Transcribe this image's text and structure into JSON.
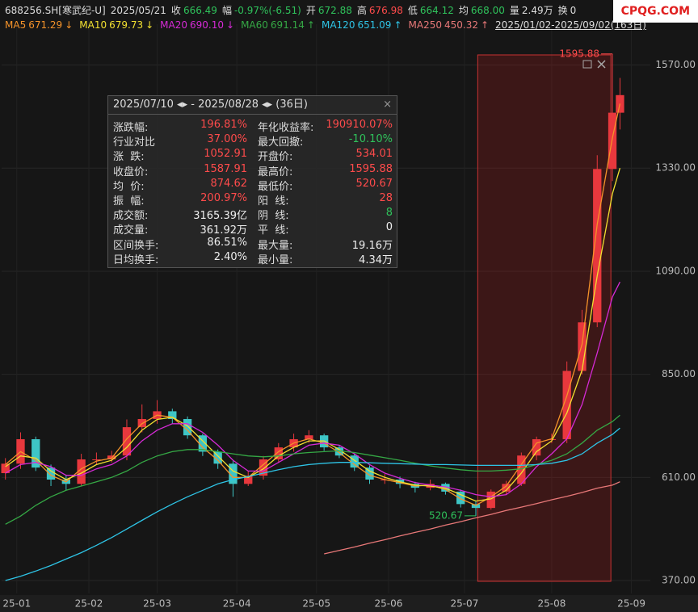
{
  "header": {
    "symbol": "688256.SH[寒武纪-U]",
    "date": "2025/05/21",
    "fields": [
      {
        "label": "收",
        "value": "666.49",
        "color": "#2fc25b"
      },
      {
        "label": "幅",
        "value": "-0.97%(-6.51)",
        "color": "#2fc25b"
      },
      {
        "label": "开",
        "value": "672.88",
        "color": "#2fc25b"
      },
      {
        "label": "高",
        "value": "676.98",
        "color": "#ff4b4b"
      },
      {
        "label": "低",
        "value": "664.12",
        "color": "#2fc25b"
      },
      {
        "label": "均",
        "value": "668.00",
        "color": "#2fc25b"
      },
      {
        "label": "量",
        "value": "2.49万",
        "color": "#dddddd"
      },
      {
        "label": "换",
        "value": "0",
        "color": "#dddddd"
      }
    ],
    "range": "2025/01/02-2025/09/02(163日)"
  },
  "watermark": "CPQG.COM",
  "panel": {
    "title": "2025/07/10 ◂▸ - 2025/08/28 ◂▸ (36日)",
    "close": "×",
    "rows": [
      [
        {
          "label": "涨跌幅:",
          "value": "196.81%",
          "color": "#ff4b4b"
        },
        {
          "label": "年化收益率:",
          "value": "190910.07%",
          "color": "#ff4b4b"
        }
      ],
      [
        {
          "label": "行业对比",
          "value": "37.00%",
          "color": "#ff4b4b"
        },
        {
          "label": "最大回撤:",
          "value": "-10.10%",
          "color": "#2fc25b"
        }
      ],
      [
        {
          "label": "涨  跌:",
          "value": "1052.91",
          "color": "#ff4b4b"
        },
        {
          "label": "开盘价:",
          "value": "534.01",
          "color": "#ff4b4b"
        }
      ],
      [
        {
          "label": "收盘价:",
          "value": "1587.91",
          "color": "#ff4b4b"
        },
        {
          "label": "最高价:",
          "value": "1595.88",
          "color": "#ff4b4b"
        }
      ],
      [
        {
          "label": "均  价:",
          "value": "874.62",
          "color": "#ff4b4b"
        },
        {
          "label": "最低价:",
          "value": "520.67",
          "color": "#ff4b4b"
        }
      ],
      [
        {
          "label": "振  幅:",
          "value": "200.97%",
          "color": "#ff4b4b"
        },
        {
          "label": "阳  线:",
          "value": "28",
          "color": "#ff4b4b"
        }
      ],
      [
        {
          "label": "成交额:",
          "value": "3165.39亿",
          "color": "#eeeeee"
        },
        {
          "label": "阴  线:",
          "value": "8",
          "color": "#2fc25b"
        }
      ],
      [
        {
          "label": "成交量:",
          "value": "361.92万",
          "color": "#eeeeee"
        },
        {
          "label": "平  线:",
          "value": "0",
          "color": "#eeeeee"
        }
      ],
      [
        {
          "label": "区间换手:",
          "value": "86.51%",
          "color": "#eeeeee"
        },
        {
          "label": "最大量:",
          "value": "19.16万",
          "color": "#eeeeee"
        }
      ],
      [
        {
          "label": "日均换手:",
          "value": "2.40%",
          "color": "#eeeeee"
        },
        {
          "label": "最小量:",
          "value": "4.34万",
          "color": "#eeeeee"
        }
      ]
    ]
  },
  "chart_data": {
    "type": "candlestick",
    "grid": true,
    "up_color": "#e8383d",
    "down_color": "#3ec6c6",
    "xlim": [
      -1,
      170
    ],
    "ylim": [
      340,
      1665
    ],
    "yticks": [
      {
        "value": 370,
        "label": "370.00"
      },
      {
        "value": 610,
        "label": "610.00"
      },
      {
        "value": 850,
        "label": "850.00"
      },
      {
        "value": 1090,
        "label": "1090.00"
      },
      {
        "value": 1330,
        "label": "1330.00"
      },
      {
        "value": 1570,
        "label": "1570.00"
      }
    ],
    "xticks": [
      {
        "value": 3,
        "label": "25-01"
      },
      {
        "value": 22,
        "label": "25-02"
      },
      {
        "value": 40,
        "label": "25-03"
      },
      {
        "value": 61,
        "label": "25-04"
      },
      {
        "value": 82,
        "label": "25-05"
      },
      {
        "value": 101,
        "label": "25-06"
      },
      {
        "value": 121,
        "label": "25-07"
      },
      {
        "value": 144,
        "label": "25-08"
      },
      {
        "value": 165,
        "label": "25-09"
      }
    ],
    "highlight_range": [
      124.5,
      159.6
    ],
    "x": [
      0,
      4,
      8,
      12,
      16,
      20,
      24,
      28,
      32,
      36,
      40,
      44,
      48,
      52,
      56,
      60,
      64,
      68,
      72,
      76,
      80,
      84,
      88,
      92,
      96,
      100,
      104,
      108,
      112,
      116,
      120,
      124,
      128,
      132,
      136,
      140,
      144,
      148,
      152,
      156,
      160,
      162
    ],
    "open": [
      620,
      642,
      699,
      633,
      605,
      595,
      652,
      652,
      661,
      727,
      746,
      764,
      746,
      708,
      670,
      642,
      595,
      614,
      652,
      680,
      699,
      708,
      680,
      661,
      633,
      605,
      605,
      595,
      586,
      595,
      577,
      548,
      539,
      577,
      595,
      661,
      699,
      699,
      858,
      971,
      1328,
      1459
    ],
    "high": [
      655,
      715,
      705,
      640,
      615,
      665,
      668,
      672,
      745,
      780,
      790,
      770,
      752,
      712,
      675,
      648,
      625,
      660,
      690,
      712,
      720,
      712,
      685,
      665,
      638,
      618,
      612,
      600,
      605,
      598,
      582,
      555,
      582,
      602,
      668,
      705,
      712,
      880,
      1000,
      1360,
      1595.88,
      1540
    ],
    "low": [
      605,
      630,
      625,
      590,
      580,
      590,
      640,
      645,
      650,
      715,
      735,
      735,
      700,
      660,
      630,
      565,
      590,
      605,
      645,
      670,
      690,
      672,
      655,
      625,
      595,
      595,
      585,
      575,
      580,
      570,
      540,
      520.67,
      535,
      570,
      590,
      650,
      690,
      690,
      850,
      960,
      1300,
      1420
    ],
    "close": [
      642,
      699,
      633,
      605,
      595,
      652,
      652,
      661,
      727,
      746,
      764,
      746,
      708,
      670,
      642,
      595,
      614,
      652,
      680,
      699,
      708,
      680,
      661,
      633,
      605,
      605,
      595,
      586,
      595,
      577,
      548,
      539,
      577,
      595,
      661,
      699,
      699,
      858,
      971,
      1328,
      1459,
      1500
    ],
    "series": [
      {
        "name": "MA5",
        "legend_value": "671.29",
        "legend_arrow": "↓",
        "color": "#f5932a",
        "values": [
          640,
          670,
          650,
          615,
          600,
          630,
          648,
          655,
          700,
          735,
          755,
          750,
          720,
          680,
          650,
          610,
          610,
          640,
          670,
          690,
          700,
          690,
          668,
          640,
          615,
          605,
          598,
          590,
          592,
          582,
          560,
          545,
          565,
          590,
          640,
          690,
          700,
          800,
          920,
          1200,
          1400,
          1480
        ]
      },
      {
        "name": "MA10",
        "legend_value": "679.73",
        "legend_arrow": "↓",
        "color": "#f2e030",
        "values": [
          635,
          660,
          655,
          625,
          605,
          620,
          640,
          650,
          680,
          720,
          745,
          750,
          730,
          695,
          660,
          625,
          610,
          630,
          660,
          680,
          695,
          695,
          675,
          650,
          625,
          610,
          600,
          592,
          590,
          585,
          570,
          555,
          560,
          580,
          620,
          670,
          695,
          760,
          860,
          1080,
          1270,
          1330
        ]
      },
      {
        "name": "MA20",
        "legend_value": "690.10",
        "legend_arrow": "↓",
        "color": "#d62ad6",
        "values": [
          620,
          640,
          645,
          635,
          615,
          615,
          630,
          640,
          660,
          695,
          720,
          735,
          735,
          715,
          685,
          650,
          625,
          625,
          645,
          665,
          685,
          690,
          685,
          665,
          640,
          620,
          608,
          598,
          592,
          588,
          580,
          570,
          565,
          570,
          595,
          635,
          665,
          700,
          780,
          900,
          1030,
          1065
        ]
      },
      {
        "name": "MA60",
        "legend_value": "691.14",
        "legend_arrow": "↑",
        "color": "#35a845",
        "values": [
          501,
          520,
          545,
          565,
          580,
          590,
          600,
          610,
          625,
          645,
          660,
          670,
          675,
          675,
          670,
          665,
          660,
          658,
          660,
          665,
          668,
          670,
          672,
          668,
          662,
          656,
          650,
          643,
          637,
          632,
          628,
          625,
          625,
          627,
          630,
          640,
          650,
          665,
          690,
          720,
          740,
          755
        ]
      },
      {
        "name": "MA120",
        "legend_value": "651.09",
        "legend_arrow": "↑",
        "color": "#2ec4e6",
        "values": [
          370,
          380,
          392,
          405,
          420,
          435,
          452,
          470,
          490,
          510,
          530,
          548,
          565,
          580,
          595,
          605,
          612,
          620,
          628,
          635,
          640,
          643,
          645,
          645,
          644,
          643,
          642,
          641,
          640,
          640,
          639,
          638,
          638,
          638,
          638,
          640,
          643,
          650,
          665,
          690,
          710,
          725
        ]
      },
      {
        "name": "MA250",
        "legend_value": "450.32",
        "legend_arrow": "↑",
        "color": "#e87878",
        "values": [
          null,
          null,
          null,
          null,
          null,
          null,
          null,
          null,
          null,
          null,
          null,
          null,
          null,
          null,
          null,
          null,
          null,
          null,
          null,
          null,
          null,
          432,
          440,
          448,
          457,
          465,
          474,
          482,
          490,
          499,
          507,
          516,
          524,
          533,
          541,
          549,
          558,
          566,
          575,
          585,
          592,
          600
        ]
      }
    ],
    "annotations": [
      {
        "text": "1595.88",
        "x": 160,
        "y": 1595.88,
        "color": "#ff4b4b"
      },
      {
        "text": "520.67",
        "x": 124,
        "y": 520.67,
        "color": "#2fc25b"
      }
    ]
  }
}
